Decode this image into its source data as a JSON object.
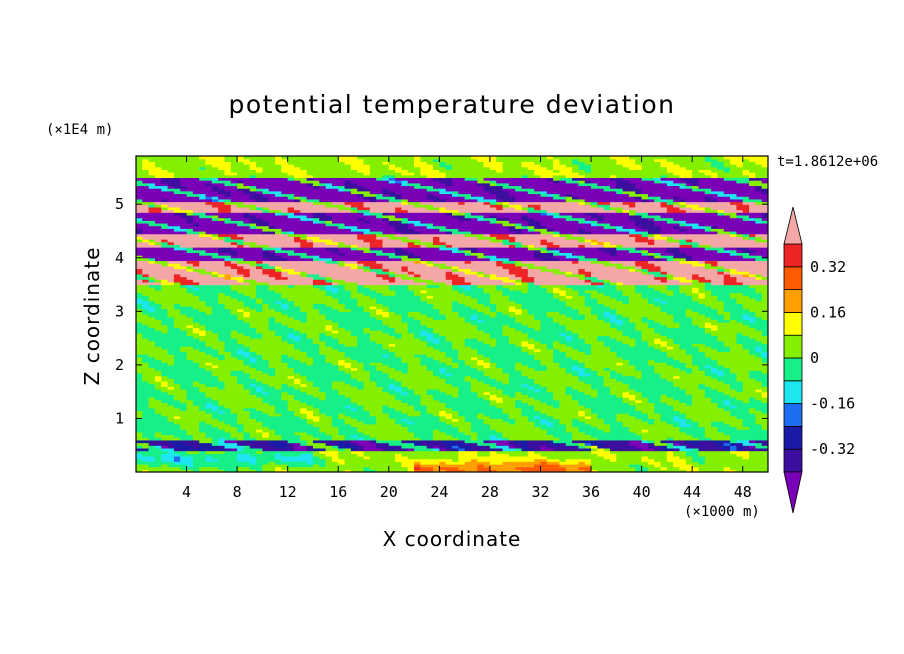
{
  "chart_data": {
    "type": "heatmap",
    "title": "potential temperature deviation",
    "xlabel": "X coordinate",
    "ylabel": "Z coordinate",
    "x_unit": "(×1000 m)",
    "y_unit": "(×1E4 m)",
    "time_label": "t=1.8612e+06",
    "xlim": [
      0,
      50
    ],
    "ylim": [
      0,
      5.9
    ],
    "x_ticks": [
      4,
      8,
      12,
      16,
      20,
      24,
      28,
      32,
      36,
      40,
      44,
      48
    ],
    "y_ticks": [
      1,
      2,
      3,
      4,
      5
    ],
    "colorbar": {
      "levels": [
        -0.4,
        -0.32,
        -0.24,
        -0.16,
        -0.08,
        0,
        0.08,
        0.16,
        0.24,
        0.32,
        0.4
      ],
      "colors": [
        "#7a00b8",
        "#3d0f9e",
        "#1b1ba8",
        "#1e6ef2",
        "#1ee6f0",
        "#17f089",
        "#84f000",
        "#ffff00",
        "#ffa000",
        "#ff5a00",
        "#ee2525",
        "#f4a7a7"
      ],
      "labels": [
        "0.32",
        "0.16",
        "0",
        "-0.16",
        "-0.32"
      ],
      "label_values": [
        0.32,
        0.16,
        0,
        -0.16,
        -0.32
      ],
      "extend": "both"
    },
    "bands": [
      {
        "z": [
          5.55,
          5.9
        ],
        "dominant": 0.06
      },
      {
        "z": [
          5.05,
          5.5
        ],
        "dominant": -0.45
      },
      {
        "z": [
          4.85,
          5.05
        ],
        "dominant": 0.45
      },
      {
        "z": [
          4.45,
          4.85
        ],
        "dominant": -0.45
      },
      {
        "z": [
          4.2,
          4.45
        ],
        "dominant": 0.45
      },
      {
        "z": [
          3.95,
          4.2
        ],
        "dominant": -0.45
      },
      {
        "z": [
          3.5,
          3.95
        ],
        "dominant": 0.45
      },
      {
        "z": [
          0.6,
          3.5
        ],
        "dominant": 0.0
      },
      {
        "z": [
          0.4,
          0.6
        ],
        "dominant": -0.35
      },
      {
        "z": [
          0.0,
          0.4
        ],
        "dominant": 0.05
      }
    ]
  }
}
